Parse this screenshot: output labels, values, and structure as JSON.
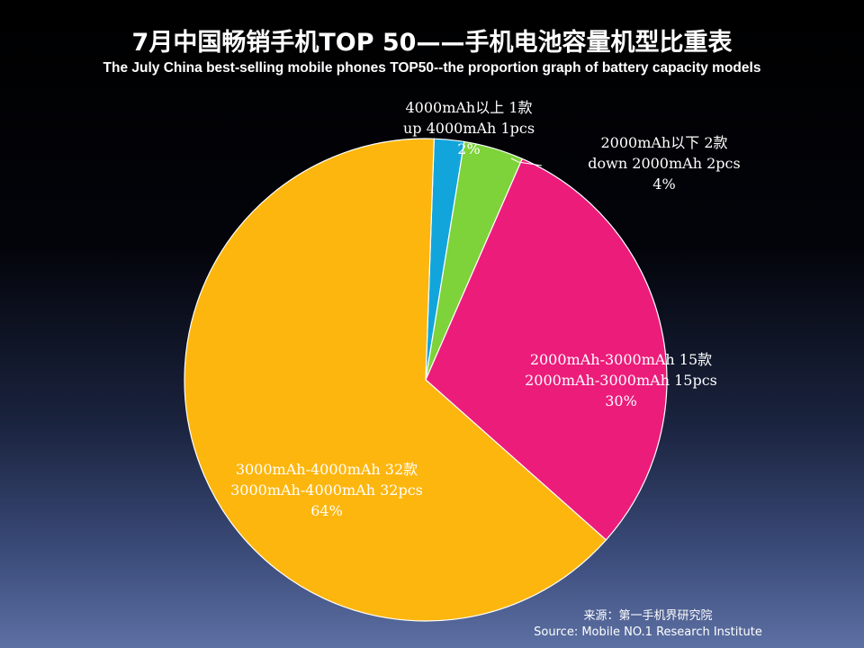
{
  "chart_data": {
    "type": "pie",
    "title": "7月中国畅销手机TOP 50——手机电池容量机型比重表",
    "subtitle": "The  July China best-selling mobile phones TOP50--the proportion graph of battery capacity models",
    "slices": [
      {
        "label_cn": "4000mAh以上 1款",
        "label_en": "up 4000mAh 1pcs",
        "percent_label": "2%",
        "value": 1,
        "color": "#12a5db"
      },
      {
        "label_cn": "2000mAh以下 2款",
        "label_en": "down 2000mAh 2pcs",
        "percent_label": "4%",
        "value": 2,
        "color": "#7ed23a"
      },
      {
        "label_cn": "2000mAh-3000mAh 15款",
        "label_en": "2000mAh-3000mAh 15pcs",
        "percent_label": "30%",
        "value": 15,
        "color": "#ec1c7b"
      },
      {
        "label_cn": "3000mAh-4000mAh 32款",
        "label_en": "3000mAh-4000mAh 32pcs",
        "percent_label": "64%",
        "value": 32,
        "color": "#fdb60e"
      }
    ],
    "legend": "none"
  },
  "source": {
    "cn": "来源：第一手机界研究院",
    "en": "Source: Mobile NO.1 Research Institute"
  }
}
